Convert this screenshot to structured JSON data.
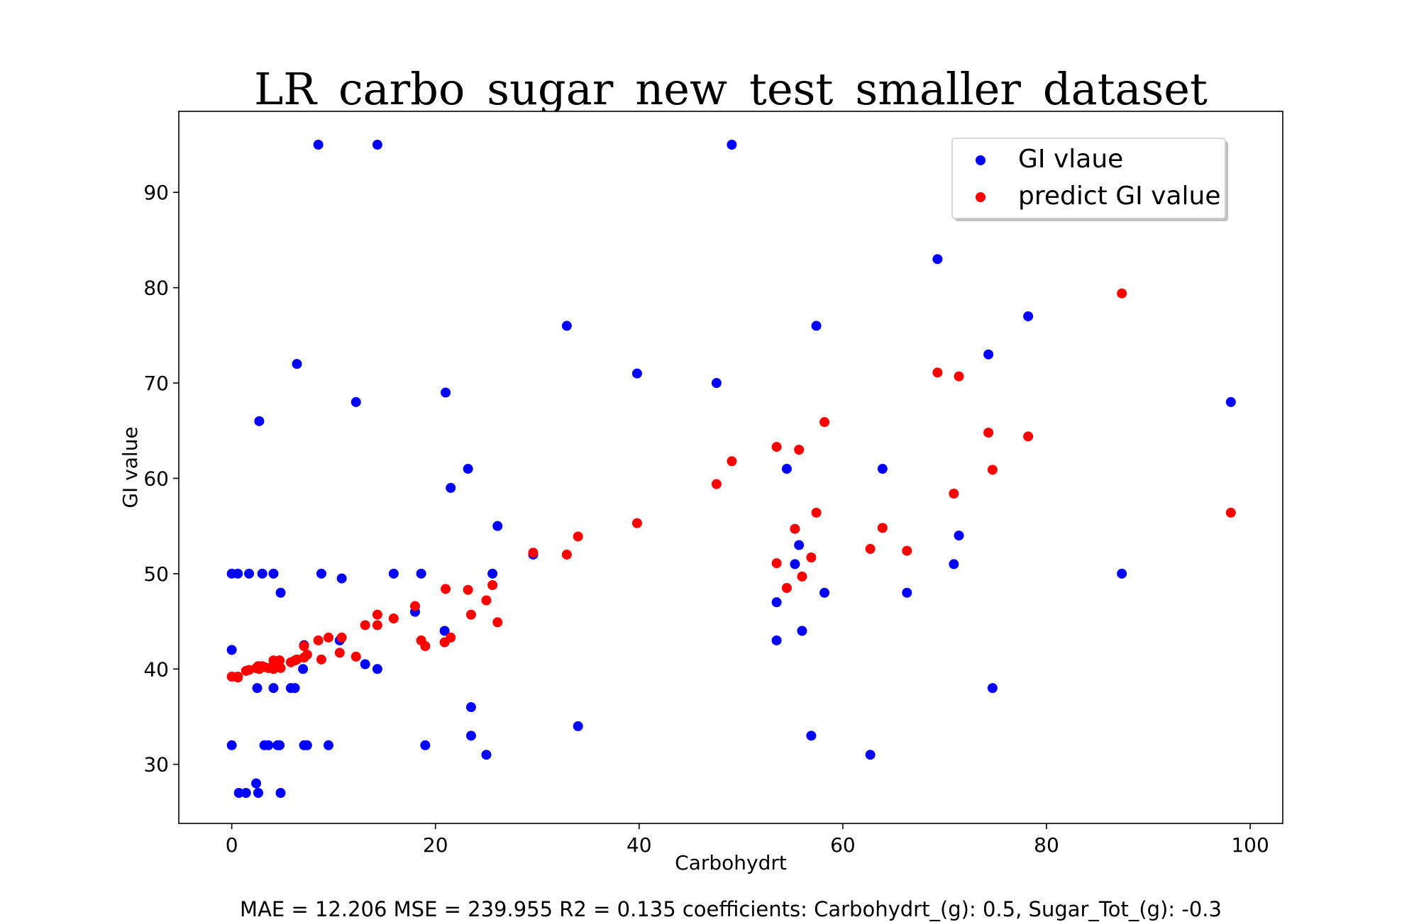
{
  "chart_data": {
    "type": "scatter",
    "title": "LR_carbo_sugar_new_test_smaller_dataset",
    "xlabel": "Carbohydrt",
    "ylabel": "GI value",
    "xlim": [
      -5.2,
      103.2
    ],
    "ylim": [
      23.8,
      98.5
    ],
    "xticks": [
      "0",
      "20",
      "40",
      "60",
      "80",
      "100"
    ],
    "yticks": [
      "30",
      "40",
      "50",
      "60",
      "70",
      "80",
      "90"
    ],
    "grid": false,
    "legend_position": "top-right",
    "footer": "MAE = 12.206 MSE = 239.955 R2 = 0.135 coefficients: Carbohydrt_(g): 0.5, Sugar_Tot_(g): -0.3",
    "series": [
      {
        "name": "GI vlaue",
        "color": "#0000ff",
        "points": [
          [
            0.0,
            42
          ],
          [
            0.0,
            32
          ],
          [
            0.0,
            50
          ],
          [
            0.6,
            50
          ],
          [
            0.7,
            27
          ],
          [
            1.4,
            27
          ],
          [
            1.7,
            50
          ],
          [
            2.4,
            28
          ],
          [
            2.5,
            38
          ],
          [
            2.6,
            27
          ],
          [
            2.7,
            66
          ],
          [
            3.0,
            50
          ],
          [
            3.2,
            32
          ],
          [
            3.6,
            32
          ],
          [
            4.1,
            38
          ],
          [
            4.1,
            50
          ],
          [
            4.5,
            32
          ],
          [
            4.7,
            32
          ],
          [
            4.8,
            48
          ],
          [
            4.8,
            27
          ],
          [
            5.8,
            38
          ],
          [
            6.2,
            38
          ],
          [
            6.4,
            72
          ],
          [
            7.0,
            40
          ],
          [
            7.1,
            42.5
          ],
          [
            7.1,
            32
          ],
          [
            7.4,
            32
          ],
          [
            8.5,
            95
          ],
          [
            8.8,
            50
          ],
          [
            9.5,
            32
          ],
          [
            10.6,
            43
          ],
          [
            10.8,
            49.5
          ],
          [
            12.2,
            68
          ],
          [
            13.1,
            40.5
          ],
          [
            14.3,
            95
          ],
          [
            14.3,
            40
          ],
          [
            15.9,
            50
          ],
          [
            18.0,
            46
          ],
          [
            18.6,
            50
          ],
          [
            19.0,
            32
          ],
          [
            20.9,
            44
          ],
          [
            21.0,
            69
          ],
          [
            21.5,
            59
          ],
          [
            23.2,
            61
          ],
          [
            23.5,
            36
          ],
          [
            23.5,
            33
          ],
          [
            25.0,
            31
          ],
          [
            25.6,
            50
          ],
          [
            26.1,
            55
          ],
          [
            29.6,
            52
          ],
          [
            32.9,
            76
          ],
          [
            34.0,
            34
          ],
          [
            39.8,
            71
          ],
          [
            47.6,
            70
          ],
          [
            49.1,
            95
          ],
          [
            53.5,
            47
          ],
          [
            53.5,
            43
          ],
          [
            54.5,
            61
          ],
          [
            55.3,
            51
          ],
          [
            55.7,
            53
          ],
          [
            56.0,
            44
          ],
          [
            56.9,
            33
          ],
          [
            57.4,
            76
          ],
          [
            58.2,
            48
          ],
          [
            62.7,
            31
          ],
          [
            63.9,
            61
          ],
          [
            66.3,
            48
          ],
          [
            69.3,
            83
          ],
          [
            70.9,
            51
          ],
          [
            71.4,
            54
          ],
          [
            74.3,
            73
          ],
          [
            74.7,
            38
          ],
          [
            78.2,
            77
          ],
          [
            87.4,
            50
          ],
          [
            98.1,
            68
          ]
        ]
      },
      {
        "name": "predict GI value",
        "color": "#ff0000",
        "points": [
          [
            0.0,
            39.2
          ],
          [
            0.6,
            39.1
          ],
          [
            0.6,
            39.2
          ],
          [
            1.4,
            39.8
          ],
          [
            1.7,
            39.9
          ],
          [
            2.4,
            40.1
          ],
          [
            2.6,
            40.3
          ],
          [
            2.7,
            40.0
          ],
          [
            3.0,
            40.3
          ],
          [
            3.2,
            40.2
          ],
          [
            3.6,
            40.1
          ],
          [
            4.1,
            40.9
          ],
          [
            4.1,
            40.0
          ],
          [
            4.5,
            40.8
          ],
          [
            4.7,
            40.9
          ],
          [
            4.8,
            40.1
          ],
          [
            5.8,
            40.7
          ],
          [
            6.2,
            40.9
          ],
          [
            6.4,
            41.0
          ],
          [
            7.1,
            41.2
          ],
          [
            7.1,
            42.4
          ],
          [
            7.4,
            41.5
          ],
          [
            8.5,
            43.0
          ],
          [
            8.8,
            41.0
          ],
          [
            9.5,
            43.3
          ],
          [
            10.6,
            41.7
          ],
          [
            10.8,
            43.3
          ],
          [
            12.2,
            41.3
          ],
          [
            13.1,
            44.6
          ],
          [
            14.3,
            45.7
          ],
          [
            14.3,
            44.6
          ],
          [
            15.9,
            45.3
          ],
          [
            18.0,
            46.6
          ],
          [
            18.6,
            43.0
          ],
          [
            19.0,
            42.4
          ],
          [
            20.9,
            42.8
          ],
          [
            21.0,
            48.4
          ],
          [
            21.5,
            43.3
          ],
          [
            23.2,
            48.3
          ],
          [
            23.5,
            45.7
          ],
          [
            25.0,
            47.2
          ],
          [
            25.6,
            48.8
          ],
          [
            26.1,
            44.9
          ],
          [
            29.6,
            52.2
          ],
          [
            32.9,
            52.0
          ],
          [
            34.0,
            53.9
          ],
          [
            39.8,
            55.3
          ],
          [
            47.6,
            59.4
          ],
          [
            49.1,
            61.8
          ],
          [
            53.5,
            63.3
          ],
          [
            53.5,
            51.1
          ],
          [
            54.5,
            48.5
          ],
          [
            55.3,
            54.7
          ],
          [
            55.7,
            63.0
          ],
          [
            56.0,
            49.7
          ],
          [
            56.9,
            51.7
          ],
          [
            57.4,
            56.4
          ],
          [
            58.2,
            65.9
          ],
          [
            62.7,
            52.6
          ],
          [
            63.9,
            54.8
          ],
          [
            66.3,
            52.4
          ],
          [
            69.3,
            71.1
          ],
          [
            70.9,
            58.4
          ],
          [
            71.4,
            70.7
          ],
          [
            74.3,
            64.8
          ],
          [
            74.7,
            60.9
          ],
          [
            78.2,
            64.4
          ],
          [
            87.4,
            79.4
          ],
          [
            98.1,
            56.4
          ]
        ]
      }
    ]
  }
}
